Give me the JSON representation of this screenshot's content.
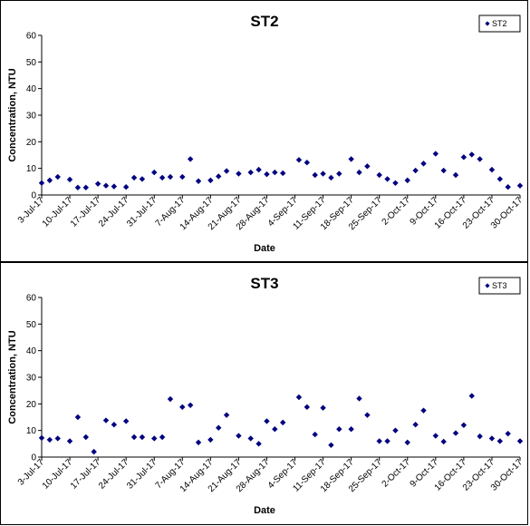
{
  "chart_data": [
    {
      "type": "scatter",
      "title": "ST2",
      "xlabel": "Date",
      "ylabel": "Concentration, NTU",
      "ylim": [
        0,
        60
      ],
      "yticks": [
        "0",
        "10",
        "20",
        "30",
        "40",
        "50",
        "60"
      ],
      "xlim": [
        "2017-07-03",
        "2017-10-30"
      ],
      "xticks": [
        "3-Jul-17",
        "10-Jul-17",
        "17-Jul-17",
        "24-Jul-17",
        "31-Jul-17",
        "7-Aug-17",
        "14-Aug-17",
        "21-Aug-17",
        "28-Aug-17",
        "4-Sep-17",
        "11-Sep-17",
        "18-Sep-17",
        "25-Sep-17",
        "2-Oct-17",
        "9-Oct-17",
        "16-Oct-17",
        "23-Oct-17",
        "30-Oct-17"
      ],
      "grid": false,
      "legend_position": "top-right",
      "color": "#000080",
      "series": [
        {
          "name": "ST2",
          "points": [
            [
              "2017-07-03",
              4.5
            ],
            [
              "2017-07-05",
              5.5
            ],
            [
              "2017-07-07",
              6.8
            ],
            [
              "2017-07-10",
              5.8
            ],
            [
              "2017-07-12",
              2.8
            ],
            [
              "2017-07-14",
              2.8
            ],
            [
              "2017-07-17",
              4.2
            ],
            [
              "2017-07-19",
              3.5
            ],
            [
              "2017-07-21",
              3.2
            ],
            [
              "2017-07-24",
              3.0
            ],
            [
              "2017-07-26",
              6.5
            ],
            [
              "2017-07-28",
              6.0
            ],
            [
              "2017-07-31",
              8.5
            ],
            [
              "2017-08-02",
              6.5
            ],
            [
              "2017-08-04",
              6.8
            ],
            [
              "2017-08-07",
              6.8
            ],
            [
              "2017-08-09",
              13.5
            ],
            [
              "2017-08-11",
              5.2
            ],
            [
              "2017-08-14",
              5.5
            ],
            [
              "2017-08-16",
              7.0
            ],
            [
              "2017-08-18",
              9.0
            ],
            [
              "2017-08-21",
              8.0
            ],
            [
              "2017-08-24",
              8.5
            ],
            [
              "2017-08-26",
              9.5
            ],
            [
              "2017-08-28",
              7.8
            ],
            [
              "2017-08-30",
              8.5
            ],
            [
              "2017-09-01",
              8.2
            ],
            [
              "2017-09-05",
              13.2
            ],
            [
              "2017-09-07",
              12.2
            ],
            [
              "2017-09-09",
              7.5
            ],
            [
              "2017-09-11",
              8.0
            ],
            [
              "2017-09-13",
              6.5
            ],
            [
              "2017-09-15",
              8.0
            ],
            [
              "2017-09-18",
              13.5
            ],
            [
              "2017-09-20",
              8.5
            ],
            [
              "2017-09-22",
              10.8
            ],
            [
              "2017-09-25",
              7.5
            ],
            [
              "2017-09-27",
              6.0
            ],
            [
              "2017-09-29",
              4.5
            ],
            [
              "2017-10-02",
              5.5
            ],
            [
              "2017-10-04",
              9.2
            ],
            [
              "2017-10-06",
              11.8
            ],
            [
              "2017-10-09",
              15.5
            ],
            [
              "2017-10-11",
              9.2
            ],
            [
              "2017-10-14",
              7.5
            ],
            [
              "2017-10-16",
              14.2
            ],
            [
              "2017-10-18",
              15.2
            ],
            [
              "2017-10-20",
              13.5
            ],
            [
              "2017-10-23",
              9.5
            ],
            [
              "2017-10-25",
              6.0
            ],
            [
              "2017-10-27",
              3.0
            ],
            [
              "2017-10-30",
              3.5
            ]
          ]
        }
      ]
    },
    {
      "type": "scatter",
      "title": "ST3",
      "xlabel": "Date",
      "ylabel": "Concentration, NTU",
      "ylim": [
        0,
        60
      ],
      "yticks": [
        "0",
        "10",
        "20",
        "30",
        "40",
        "50",
        "60"
      ],
      "xlim": [
        "2017-07-03",
        "2017-10-30"
      ],
      "xticks": [
        "3-Jul-17",
        "10-Jul-17",
        "17-Jul-17",
        "24-Jul-17",
        "31-Jul-17",
        "7-Aug-17",
        "14-Aug-17",
        "21-Aug-17",
        "28-Aug-17",
        "4-Sep-17",
        "11-Sep-17",
        "18-Sep-17",
        "25-Sep-17",
        "2-Oct-17",
        "9-Oct-17",
        "16-Oct-17",
        "23-Oct-17",
        "30-Oct-17"
      ],
      "grid": false,
      "legend_position": "top-right",
      "color": "#000080",
      "series": [
        {
          "name": "ST3",
          "points": [
            [
              "2017-07-03",
              7.2
            ],
            [
              "2017-07-05",
              6.5
            ],
            [
              "2017-07-07",
              7.0
            ],
            [
              "2017-07-10",
              6.0
            ],
            [
              "2017-07-12",
              15.0
            ],
            [
              "2017-07-14",
              7.5
            ],
            [
              "2017-07-16",
              2.0
            ],
            [
              "2017-07-19",
              13.8
            ],
            [
              "2017-07-21",
              12.2
            ],
            [
              "2017-07-24",
              13.5
            ],
            [
              "2017-07-26",
              7.5
            ],
            [
              "2017-07-28",
              7.5
            ],
            [
              "2017-07-31",
              7.0
            ],
            [
              "2017-08-02",
              7.5
            ],
            [
              "2017-08-04",
              21.8
            ],
            [
              "2017-08-07",
              18.8
            ],
            [
              "2017-08-09",
              19.5
            ],
            [
              "2017-08-11",
              5.5
            ],
            [
              "2017-08-14",
              6.5
            ],
            [
              "2017-08-16",
              11.0
            ],
            [
              "2017-08-18",
              15.8
            ],
            [
              "2017-08-21",
              8.0
            ],
            [
              "2017-08-24",
              7.0
            ],
            [
              "2017-08-26",
              5.0
            ],
            [
              "2017-08-28",
              13.5
            ],
            [
              "2017-08-30",
              10.5
            ],
            [
              "2017-09-01",
              13.0
            ],
            [
              "2017-09-05",
              22.5
            ],
            [
              "2017-09-07",
              18.8
            ],
            [
              "2017-09-09",
              8.5
            ],
            [
              "2017-09-11",
              18.5
            ],
            [
              "2017-09-13",
              4.5
            ],
            [
              "2017-09-15",
              10.5
            ],
            [
              "2017-09-18",
              10.5
            ],
            [
              "2017-09-20",
              22.0
            ],
            [
              "2017-09-22",
              15.8
            ],
            [
              "2017-09-25",
              6.0
            ],
            [
              "2017-09-27",
              6.0
            ],
            [
              "2017-09-29",
              10.0
            ],
            [
              "2017-10-02",
              5.5
            ],
            [
              "2017-10-04",
              12.2
            ],
            [
              "2017-10-06",
              17.5
            ],
            [
              "2017-10-09",
              8.0
            ],
            [
              "2017-10-11",
              5.8
            ],
            [
              "2017-10-14",
              9.0
            ],
            [
              "2017-10-16",
              12.0
            ],
            [
              "2017-10-18",
              23.0
            ],
            [
              "2017-10-20",
              7.8
            ],
            [
              "2017-10-23",
              7.0
            ],
            [
              "2017-10-25",
              6.0
            ],
            [
              "2017-10-27",
              8.8
            ],
            [
              "2017-10-30",
              6.0
            ]
          ]
        }
      ]
    }
  ]
}
